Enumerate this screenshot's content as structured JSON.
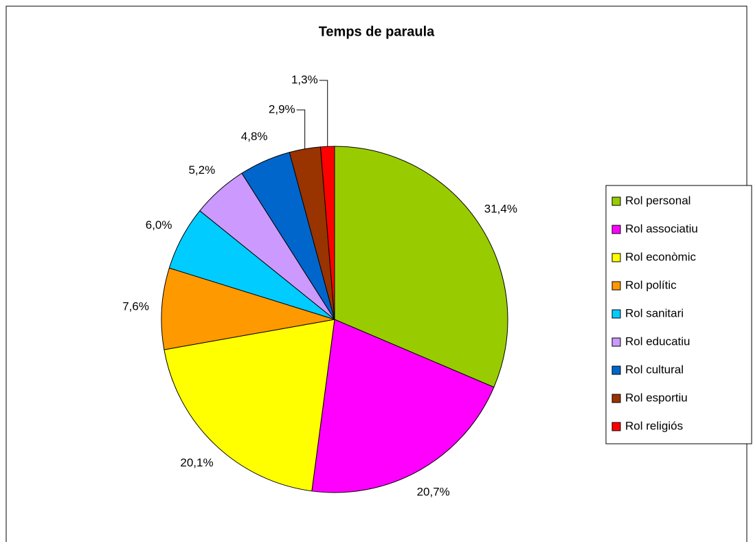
{
  "chart_data": {
    "type": "pie",
    "title": "Temps de paraula",
    "categories": [
      "Rol personal",
      "Rol associatiu",
      "Rol econòmic",
      "Rol polític",
      "Rol sanitari",
      "Rol educatiu",
      "Rol cultural",
      "Rol esportiu",
      "Rol religiós"
    ],
    "values": [
      31.4,
      20.7,
      20.1,
      7.6,
      6.0,
      5.2,
      4.8,
      2.9,
      1.3
    ],
    "value_labels": [
      "31,4%",
      "20,7%",
      "20,1%",
      "7,6%",
      "6,0%",
      "5,2%",
      "4,8%",
      "2,9%",
      "1,3%"
    ],
    "colors": [
      "#99cc00",
      "#ff00ff",
      "#ffff00",
      "#ff9900",
      "#00ccff",
      "#cc99ff",
      "#0066cc",
      "#993300",
      "#ff0000"
    ],
    "legend": "right"
  }
}
